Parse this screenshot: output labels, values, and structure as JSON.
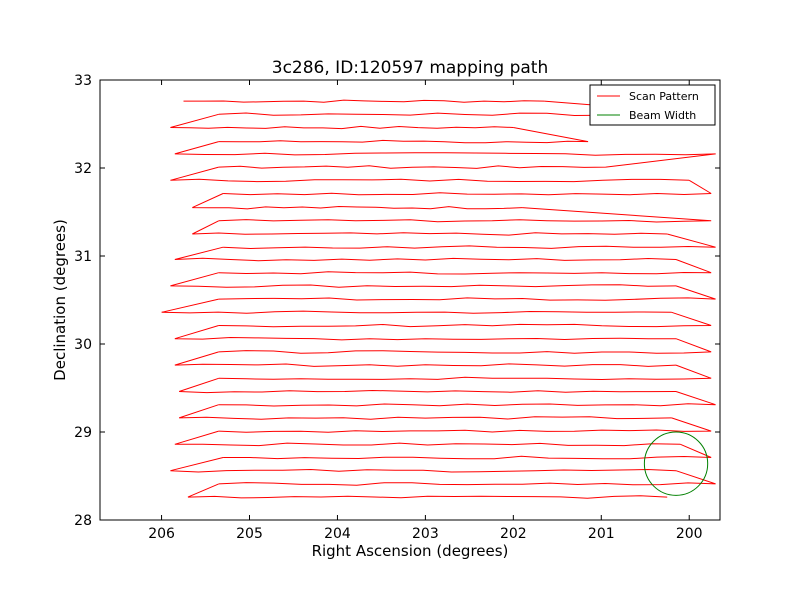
{
  "chart_data": {
    "type": "line",
    "title": "3c286, ID:120597 mapping path",
    "xlabel": "Right Ascension (degrees)",
    "ylabel": "Declination (degrees)",
    "xlim": [
      206.7,
      199.65
    ],
    "ylim": [
      28,
      33
    ],
    "x_inverted": true,
    "xticks": [
      206,
      205,
      204,
      203,
      202,
      201,
      200
    ],
    "yticks": [
      28,
      29,
      30,
      31,
      32,
      33
    ],
    "grid": false,
    "legend_position": "top-right",
    "series": [
      {
        "name": "Scan Pattern",
        "color": "#ff0000",
        "scan_rows": [
          {
            "dec": 32.76,
            "x_start": 205.75,
            "x_end": 201.65,
            "side": "left"
          },
          {
            "dec": 32.61,
            "x_start": 205.35,
            "x_end": 199.75,
            "side": "right"
          },
          {
            "dec": 32.46,
            "x_start": 205.9,
            "x_end": 202.0,
            "side": "left"
          },
          {
            "dec": 32.3,
            "x_start": 205.35,
            "x_end": 201.15,
            "side": "right"
          },
          {
            "dec": 32.16,
            "x_start": 205.85,
            "x_end": 199.7,
            "side": "left"
          },
          {
            "dec": 32.01,
            "x_start": 205.35,
            "x_end": 200.95,
            "side": "right"
          },
          {
            "dec": 31.86,
            "x_start": 205.9,
            "x_end": 200.0,
            "side": "left"
          },
          {
            "dec": 31.71,
            "x_start": 205.3,
            "x_end": 199.75,
            "side": "right"
          },
          {
            "dec": 31.55,
            "x_start": 205.65,
            "x_end": 201.9,
            "side": "left"
          },
          {
            "dec": 31.4,
            "x_start": 205.35,
            "x_end": 199.75,
            "side": "right"
          },
          {
            "dec": 31.25,
            "x_start": 205.65,
            "x_end": 200.25,
            "side": "left"
          },
          {
            "dec": 31.1,
            "x_start": 205.3,
            "x_end": 199.7,
            "side": "right"
          },
          {
            "dec": 30.96,
            "x_start": 205.85,
            "x_end": 200.15,
            "side": "left"
          },
          {
            "dec": 30.81,
            "x_start": 205.35,
            "x_end": 199.75,
            "side": "right"
          },
          {
            "dec": 30.66,
            "x_start": 205.9,
            "x_end": 200.15,
            "side": "left"
          },
          {
            "dec": 30.51,
            "x_start": 205.35,
            "x_end": 199.7,
            "side": "right"
          },
          {
            "dec": 30.36,
            "x_start": 206.0,
            "x_end": 200.2,
            "side": "left"
          },
          {
            "dec": 30.21,
            "x_start": 205.35,
            "x_end": 199.75,
            "side": "right"
          },
          {
            "dec": 30.06,
            "x_start": 205.85,
            "x_end": 200.15,
            "side": "left"
          },
          {
            "dec": 29.91,
            "x_start": 205.35,
            "x_end": 199.75,
            "side": "right"
          },
          {
            "dec": 29.76,
            "x_start": 205.85,
            "x_end": 200.15,
            "side": "left"
          },
          {
            "dec": 29.61,
            "x_start": 205.35,
            "x_end": 199.75,
            "side": "right"
          },
          {
            "dec": 29.46,
            "x_start": 205.8,
            "x_end": 200.15,
            "side": "left"
          },
          {
            "dec": 29.31,
            "x_start": 205.35,
            "x_end": 199.7,
            "side": "right"
          },
          {
            "dec": 29.16,
            "x_start": 205.8,
            "x_end": 200.2,
            "side": "left"
          },
          {
            "dec": 29.01,
            "x_start": 205.35,
            "x_end": 199.75,
            "side": "right"
          },
          {
            "dec": 28.86,
            "x_start": 205.85,
            "x_end": 200.1,
            "side": "left"
          },
          {
            "dec": 28.71,
            "x_start": 205.3,
            "x_end": 199.75,
            "side": "right"
          },
          {
            "dec": 28.56,
            "x_start": 205.9,
            "x_end": 200.15,
            "side": "left"
          },
          {
            "dec": 28.41,
            "x_start": 205.35,
            "x_end": 199.7,
            "side": "right"
          },
          {
            "dec": 28.26,
            "x_start": 205.7,
            "x_end": 200.25,
            "side": "left"
          }
        ]
      },
      {
        "name": "Beam Width",
        "color": "#008000",
        "center": [
          200.15,
          28.64
        ],
        "radius": 0.36
      }
    ]
  }
}
